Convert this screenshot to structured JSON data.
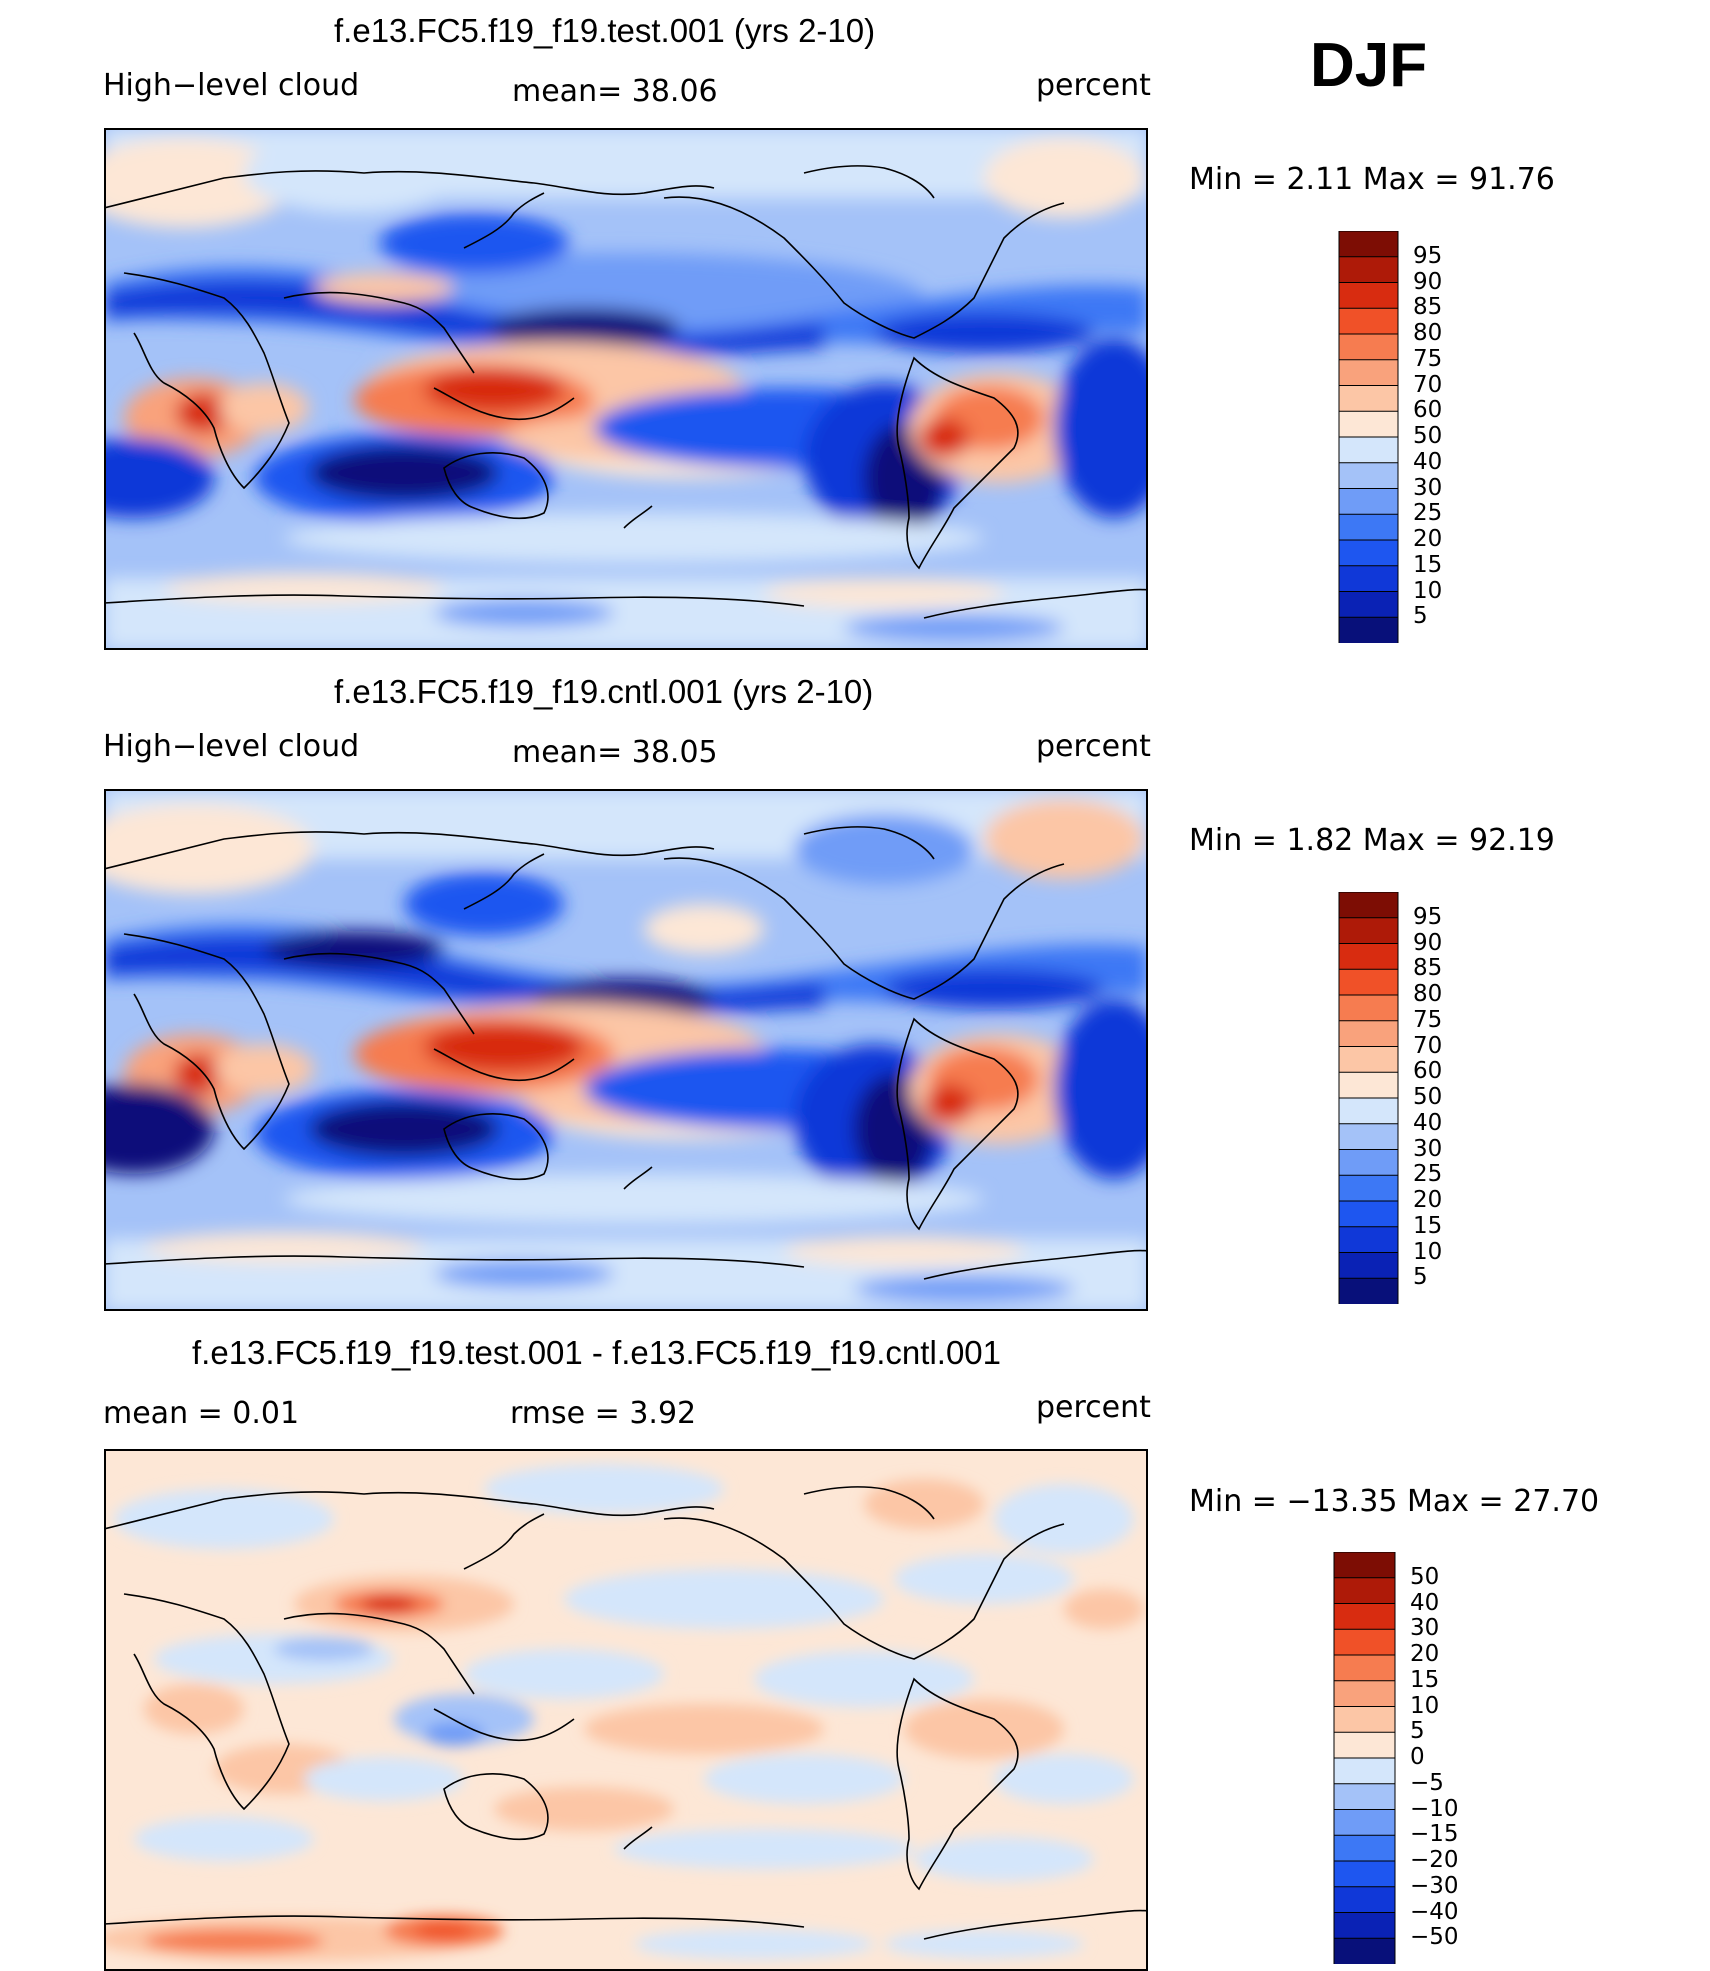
{
  "season": "DJF",
  "palette_abs": [
    "#08107a",
    "#0a22b5",
    "#1038d8",
    "#1e56f0",
    "#3d78f5",
    "#6f9cf7",
    "#a4c2f8",
    "#d4e6fb",
    "#fde7d6",
    "#fcc6a6",
    "#f9a27c",
    "#f67c50",
    "#f05128",
    "#d82c10",
    "#ae1a08",
    "#7d0d04"
  ],
  "palette_diff": [
    "#08107a",
    "#0a22b5",
    "#1038d8",
    "#1e56f0",
    "#3d78f5",
    "#6f9cf7",
    "#a4c2f8",
    "#d4e6fb",
    "#fde7d6",
    "#fcc6a6",
    "#f9a27c",
    "#f67c50",
    "#f05128",
    "#d82c10",
    "#ae1a08",
    "#7d0d04"
  ],
  "panels": [
    {
      "title": "f.e13.FC5.f19_f19.test.001 (yrs 2-10)",
      "left_label": "High−level cloud",
      "mid_label": "mean=   38.06",
      "right_label": "percent",
      "minmax": "Min  =     2.11  Max  =    91.76",
      "levels": [
        "95",
        "90",
        "85",
        "80",
        "75",
        "70",
        "60",
        "50",
        "40",
        "30",
        "25",
        "20",
        "15",
        "10",
        "5"
      ]
    },
    {
      "title": "f.e13.FC5.f19_f19.cntl.001 (yrs 2-10)",
      "left_label": "High−level cloud",
      "mid_label": "mean=   38.05",
      "right_label": "percent",
      "minmax": "Min  =     1.82  Max  =    92.19",
      "levels": [
        "95",
        "90",
        "85",
        "80",
        "75",
        "70",
        "60",
        "50",
        "40",
        "30",
        "25",
        "20",
        "15",
        "10",
        "5"
      ]
    },
    {
      "title": "f.e13.FC5.f19_f19.test.001 - f.e13.FC5.f19_f19.cntl.001",
      "left_label": "mean  =      0.01",
      "mid_label": "rmse  =      3.92",
      "right_label": "percent",
      "minmax": "Min  = −13.35  Max  =    27.70",
      "levels": [
        "50",
        "40",
        "30",
        "20",
        "15",
        "10",
        "5",
        "0",
        "−5",
        "−10",
        "−15",
        "−20",
        "−30",
        "−40",
        "−50"
      ]
    }
  ]
}
